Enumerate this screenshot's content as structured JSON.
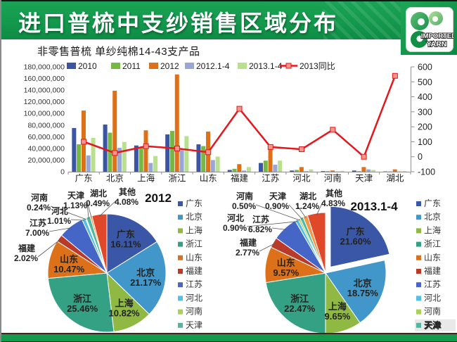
{
  "header": {
    "title": "进口普梳中支纱销售区域分布",
    "logo_line1": "IMPORTED",
    "logo_line2": "YARN"
  },
  "colors": {
    "banner_green": "#13994d",
    "footer_green": "#149a4d",
    "footer_top_line": "#3f2420",
    "line_red": "#e3171c",
    "line_marker": "#f2958b"
  },
  "chart_data": [
    {
      "type": "bar",
      "title": "非零售普梳 单纱纯棉14-43支产品",
      "categories": [
        "广东",
        "北京",
        "上海",
        "浙江",
        "山东",
        "福建",
        "江苏",
        "河北",
        "河南",
        "天津",
        "湖北"
      ],
      "series": [
        {
          "name": "2010",
          "color": "#3b55a5",
          "values": [
            75000000,
            81000000,
            45000000,
            64000000,
            47000000,
            3000000,
            15000000,
            2000000,
            1000000,
            2000000,
            500000
          ]
        },
        {
          "name": "2011",
          "color": "#76b843",
          "values": [
            47000000,
            67000000,
            42000000,
            70000000,
            44000000,
            5000000,
            19000000,
            3000000,
            1000000,
            1000000,
            500000
          ]
        },
        {
          "name": "2012",
          "color": "#de7117",
          "values": [
            105000000,
            139000000,
            71000000,
            167000000,
            69000000,
            13000000,
            40000000,
            8000000,
            2000000,
            8000000,
            4000000
          ]
        },
        {
          "name": "2012.1-4",
          "color": "#98a6d9",
          "values": [
            28000000,
            41000000,
            15000000,
            37000000,
            20000000,
            2000000,
            12000000,
            1000000,
            500000,
            4000000,
            500000
          ]
        },
        {
          "name": "2013.1-4",
          "color": "#b8e08e",
          "values": [
            58000000,
            51000000,
            27000000,
            61000000,
            26000000,
            8000000,
            19000000,
            4000000,
            1500000,
            3000000,
            1000000
          ]
        }
      ],
      "line_series": {
        "name": "2013同比",
        "color": "#e3171c",
        "marker_color": "#f2958b",
        "axis": "right",
        "values": [
          100,
          25,
          70,
          55,
          30,
          320,
          65,
          50,
          180,
          0,
          540
        ]
      },
      "left_axis": {
        "min": 0,
        "max": 180000000,
        "step": 20000000
      },
      "right_axis": {
        "min": -100,
        "max": 600,
        "step": 100
      },
      "legend_position": "top",
      "grid": false
    },
    {
      "type": "pie",
      "title": "2012",
      "slices": [
        {
          "name": "广东",
          "pct": 16.11,
          "color": "#3a57a7"
        },
        {
          "name": "北京",
          "pct": 21.17,
          "color": "#4197c9"
        },
        {
          "name": "上海",
          "pct": 10.82,
          "color": "#8fb942"
        },
        {
          "name": "浙江",
          "pct": 25.46,
          "color": "#35a184"
        },
        {
          "name": "山东",
          "pct": 10.47,
          "color": "#dc7119"
        },
        {
          "name": "福建",
          "pct": 2.02,
          "color": "#b93a28"
        },
        {
          "name": "江苏",
          "pct": 7.0,
          "color": "#4566c6"
        },
        {
          "name": "河北",
          "pct": 1.01,
          "color": "#53bee6"
        },
        {
          "name": "河南",
          "pct": 0.24,
          "color": "#a9d158"
        },
        {
          "name": "天津",
          "pct": 1.13,
          "color": "#4cb9a0"
        },
        {
          "name": "湖北",
          "pct": 0.49,
          "color": "#f79646"
        },
        {
          "name": "其他",
          "pct": 4.08,
          "color": "#e0482a"
        }
      ],
      "legend": [
        "广东",
        "北京",
        "上海",
        "浙江",
        "山东",
        "福建",
        "江苏",
        "河北",
        "河南",
        "天津"
      ]
    },
    {
      "type": "pie",
      "title": "2013.1-4",
      "exploded": "广东",
      "slices": [
        {
          "name": "广东",
          "pct": 21.6,
          "color": "#3a57a7"
        },
        {
          "name": "北京",
          "pct": 18.75,
          "color": "#4197c9"
        },
        {
          "name": "上海",
          "pct": 9.65,
          "color": "#8fb942"
        },
        {
          "name": "浙江",
          "pct": 22.47,
          "color": "#35a184"
        },
        {
          "name": "山东",
          "pct": 9.57,
          "color": "#dc7119"
        },
        {
          "name": "福建",
          "pct": 2.77,
          "color": "#b93a28"
        },
        {
          "name": "江苏",
          "pct": 6.82,
          "color": "#4566c6"
        },
        {
          "name": "河北",
          "pct": 0.9,
          "color": "#53bee6"
        },
        {
          "name": "河南",
          "pct": 0.5,
          "color": "#a9d158"
        },
        {
          "name": "天津",
          "pct": 0.9,
          "color": "#4cb9a0"
        },
        {
          "name": "湖北",
          "pct": 1.24,
          "color": "#f79646"
        },
        {
          "name": "其他",
          "pct": 4.83,
          "color": "#e0482a"
        }
      ],
      "legend": [
        "广东",
        "北京",
        "上海",
        "浙江",
        "山东",
        "福建",
        "江苏",
        "河北",
        "河南",
        "天津"
      ]
    }
  ]
}
